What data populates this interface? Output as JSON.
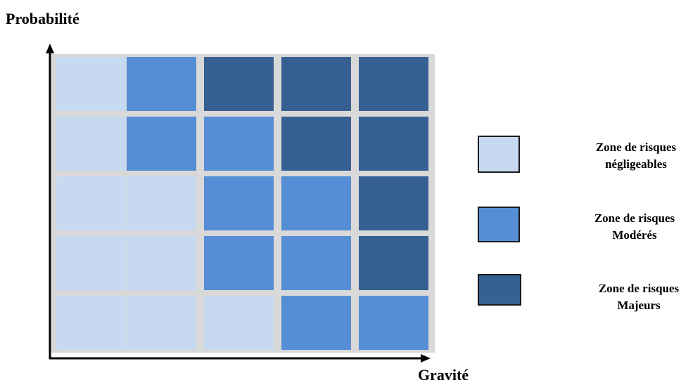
{
  "axes": {
    "y_title": "Probabilité",
    "x_title": "Gravité"
  },
  "colors": {
    "negligible": "#c6d9f1",
    "moderate": "#558ed5",
    "major": "#376092",
    "grid": "#d9d9d9",
    "axis": "#000000"
  },
  "matrix": {
    "rows_top_to_bottom": [
      [
        "negligible",
        "moderate",
        "major",
        "major",
        "major"
      ],
      [
        "negligible",
        "moderate",
        "moderate",
        "major",
        "major"
      ],
      [
        "negligible",
        "negligible",
        "moderate",
        "moderate",
        "major"
      ],
      [
        "negligible",
        "negligible",
        "moderate",
        "moderate",
        "major"
      ],
      [
        "negligible",
        "negligible",
        "negligible",
        "moderate",
        "moderate"
      ]
    ]
  },
  "legend": [
    {
      "zone": "negligible",
      "line1": "Zone de risques",
      "line2": "négligeables"
    },
    {
      "zone": "moderate",
      "line1": "Zone de risques",
      "line2": "Modérés"
    },
    {
      "zone": "major",
      "line1": "Zone de  risques",
      "line2": "Majeurs"
    }
  ]
}
